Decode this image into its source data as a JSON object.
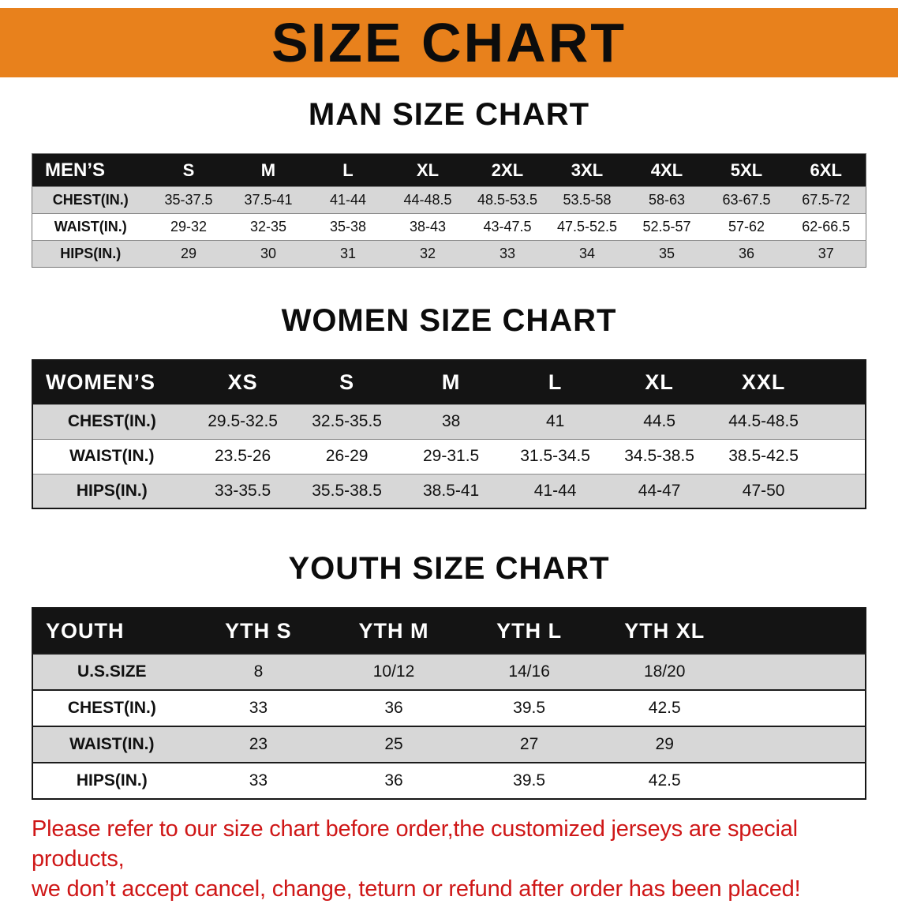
{
  "banner": {
    "title": "SIZE CHART"
  },
  "sections": [
    {
      "heading": "MAN SIZE CHART",
      "table": {
        "header": [
          "MEN’S",
          "S",
          "M",
          "L",
          "XL",
          "2XL",
          "3XL",
          "4XL",
          "5XL",
          "6XL"
        ],
        "rows": [
          [
            "CHEST(IN.)",
            "35-37.5",
            "37.5-41",
            "41-44",
            "44-48.5",
            "48.5-53.5",
            "53.5-58",
            "58-63",
            "63-67.5",
            "67.5-72"
          ],
          [
            "WAIST(IN.)",
            "29-32",
            "32-35",
            "35-38",
            "38-43",
            "43-47.5",
            "47.5-52.5",
            "52.5-57",
            "57-62",
            "62-66.5"
          ],
          [
            "HIPS(IN.)",
            "29",
            "30",
            "31",
            "32",
            "33",
            "34",
            "35",
            "36",
            "37"
          ]
        ]
      }
    },
    {
      "heading": "WOMEN SIZE CHART",
      "table": {
        "header": [
          "WOMEN’S",
          "XS",
          "S",
          "M",
          "L",
          "XL",
          "XXL"
        ],
        "rows": [
          [
            "CHEST(IN.)",
            "29.5-32.5",
            "32.5-35.5",
            "38",
            "41",
            "44.5",
            "44.5-48.5"
          ],
          [
            "WAIST(IN.)",
            "23.5-26",
            "26-29",
            "29-31.5",
            "31.5-34.5",
            "34.5-38.5",
            "38.5-42.5"
          ],
          [
            "HIPS(IN.)",
            "33-35.5",
            "35.5-38.5",
            "38.5-41",
            "41-44",
            "44-47",
            "47-50"
          ]
        ]
      }
    },
    {
      "heading": "YOUTH SIZE CHART",
      "table": {
        "header": [
          "YOUTH",
          "YTH S",
          "YTH M",
          "YTH L",
          "YTH XL"
        ],
        "rows": [
          [
            "U.S.SIZE",
            "8",
            "10/12",
            "14/16",
            "18/20"
          ],
          [
            "CHEST(IN.)",
            "33",
            "36",
            "39.5",
            "42.5"
          ],
          [
            "WAIST(IN.)",
            "23",
            "25",
            "27",
            "29"
          ],
          [
            "HIPS(IN.)",
            "33",
            "36",
            "39.5",
            "42.5"
          ]
        ]
      }
    }
  ],
  "footer": {
    "lines": [
      "Please refer to our size chart before order,the customized jerseys are special products,",
      "we don’t accept cancel, change, teturn or refund after order has been placed!"
    ]
  },
  "colors": {
    "banner_bg": "#e8811c",
    "header_bg": "#141414",
    "header_text": "#ffffff",
    "stripe_bg": "#d7d7d7",
    "disclaimer_text": "#cf1717"
  }
}
